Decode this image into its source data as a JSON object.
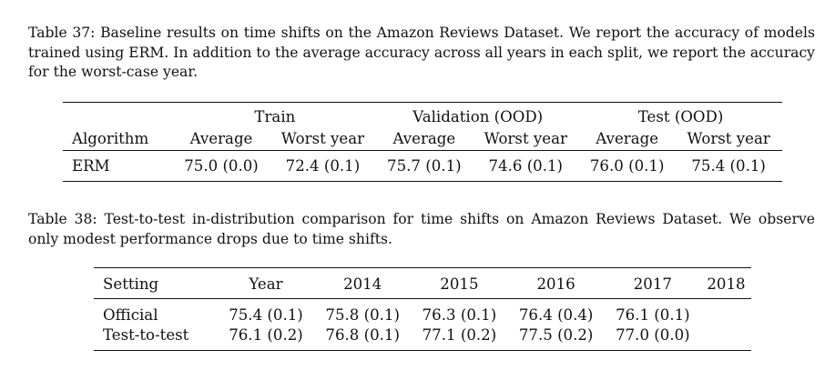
{
  "table37": {
    "caption": "Table 37: Baseline results on time shifts on the Amazon Reviews Dataset. We report the accuracy of models trained using ERM. In addition to the average accuracy across all years in each split, we report the accuracy for the worst-case year.",
    "groups": [
      "Train",
      "Validation (OOD)",
      "Test (OOD)"
    ],
    "columns": [
      "Algorithm",
      "Average",
      "Worst year",
      "Average",
      "Worst year",
      "Average",
      "Worst year"
    ],
    "rows": [
      [
        "ERM",
        "75.0 (0.0)",
        "72.4 (0.1)",
        "75.7 (0.1)",
        "74.6 (0.1)",
        "76.0 (0.1)",
        "75.4 (0.1)"
      ]
    ]
  },
  "table38": {
    "caption": "Table 38: Test-to-test in-distribution comparison for time shifts on Amazon Reviews Dataset. We observe only modest performance drops due to time shifts.",
    "columns": [
      "Setting",
      "Year",
      "2014",
      "2015",
      "2016",
      "2017",
      "2018"
    ],
    "rows": [
      [
        "Official",
        "75.4 (0.1)",
        "75.8 (0.1)",
        "76.3 (0.1)",
        "76.4 (0.4)",
        "76.1 (0.1)",
        ""
      ],
      [
        "Test-to-test",
        "76.1 (0.2)",
        "76.8 (0.1)",
        "77.1 (0.2)",
        "77.5 (0.2)",
        "77.0 (0.0)",
        ""
      ]
    ]
  }
}
